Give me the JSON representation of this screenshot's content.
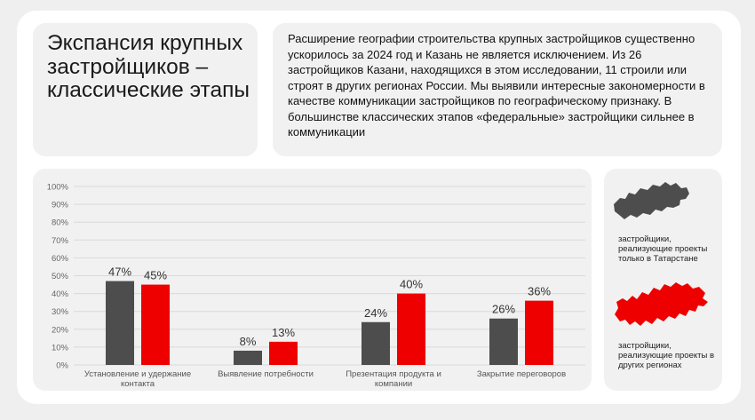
{
  "title": "Экспансия крупных застройщиков – классические этапы",
  "description": "Расширение географии строительства крупных застройщиков существенно ускорилось за 2024 год и Казань не является исключением. Из 26 застройщиков Казани, находящихся в этом исследовании, 11 строили или строят в других регионах России. Мы выявили интересные закономерности в качестве коммуникации застройщиков по географическому признаку. В большинстве классических этапов «федеральные» застройщики сильнее в коммуникации",
  "colors": {
    "local": "#4d4d4d",
    "federal": "#ef0000",
    "grid": "#d9d9d9"
  },
  "legend": {
    "local": {
      "label": "застройщики, реализующие проекты только в Татарстане",
      "icon": "tatarstan-map-icon"
    },
    "federal": {
      "label": "застройщики, реализующие проекты в других регионах",
      "icon": "russia-map-icon"
    }
  },
  "chart_data": {
    "type": "bar",
    "categories": [
      "Установление и удержание контакта",
      "Выявление потребности",
      "Презентация продукта и компании",
      "Закрытие переговоров"
    ],
    "series": [
      {
        "values": [
          47,
          8,
          24,
          26
        ],
        "labels": [
          "47%",
          "8%",
          "24%",
          "26%"
        ]
      },
      {
        "values": [
          45,
          13,
          40,
          36
        ],
        "labels": [
          "45%",
          "13%",
          "40%",
          "36%"
        ]
      }
    ],
    "ylim": [
      0,
      100
    ],
    "yticks": [
      "0%",
      "10%",
      "20%",
      "30%",
      "40%",
      "50%",
      "60%",
      "70%",
      "80%",
      "90%",
      "100%"
    ],
    "grid": true
  }
}
